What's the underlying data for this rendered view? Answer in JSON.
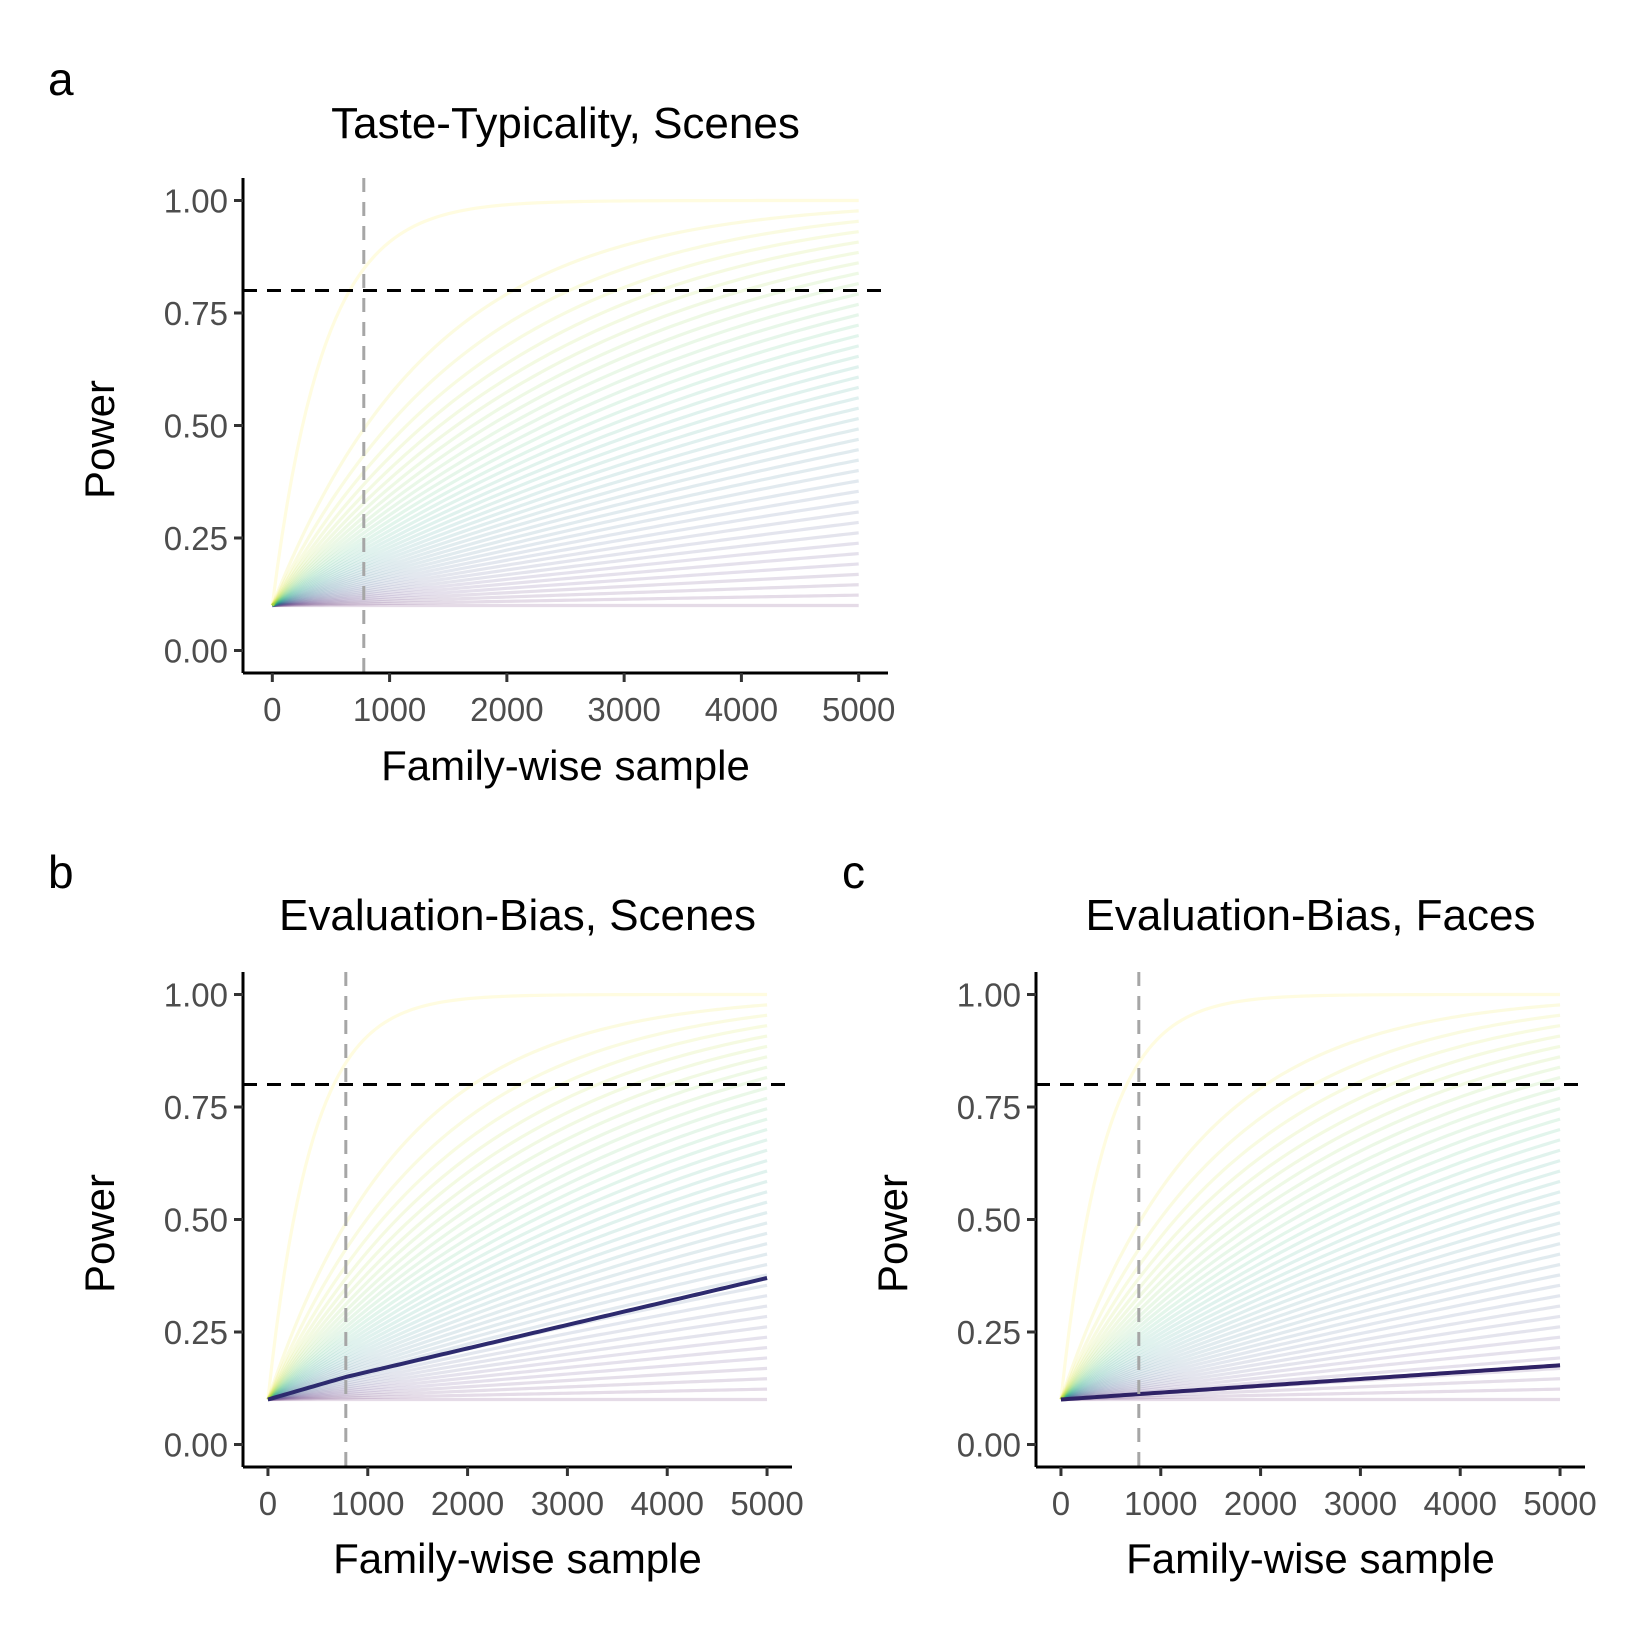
{
  "chart_data": [
    {
      "type": "line",
      "panel_letter": "a",
      "title": "Taste-Typicality, Scenes",
      "xlabel": "Family-wise sample",
      "ylabel": "Power",
      "xlim": [
        -250,
        5250
      ],
      "ylim": [
        -0.05,
        1.05
      ],
      "x_ticks": [
        0,
        1000,
        2000,
        3000,
        4000,
        5000
      ],
      "y_ticks": [
        0.0,
        0.25,
        0.5,
        0.75,
        1.0
      ],
      "y_tick_labels": [
        "0.00",
        "0.25",
        "0.50",
        "0.75",
        "1.00"
      ],
      "reference_lines": {
        "power_threshold": 0.8,
        "sample_size": 780
      },
      "power_curves": {
        "x": [
          0,
          5000
        ],
        "start_power": 0.1,
        "count": 40,
        "end_power_min": 0.1,
        "end_power_max": 1.0,
        "color_scale": "viridis"
      },
      "highlighted_curve": null,
      "grid": false
    },
    {
      "type": "line",
      "panel_letter": "b",
      "title": "Evaluation-Bias, Scenes",
      "xlabel": "Family-wise sample",
      "ylabel": "Power",
      "xlim": [
        -250,
        5250
      ],
      "ylim": [
        -0.05,
        1.05
      ],
      "x_ticks": [
        0,
        1000,
        2000,
        3000,
        4000,
        5000
      ],
      "y_ticks": [
        0.0,
        0.25,
        0.5,
        0.75,
        1.0
      ],
      "y_tick_labels": [
        "0.00",
        "0.25",
        "0.50",
        "0.75",
        "1.00"
      ],
      "reference_lines": {
        "power_threshold": 0.8,
        "sample_size": 780
      },
      "power_curves": {
        "x": [
          0,
          5000
        ],
        "start_power": 0.1,
        "count": 40,
        "end_power_min": 0.1,
        "end_power_max": 1.0,
        "color_scale": "viridis"
      },
      "highlighted_curve": {
        "x": [
          0,
          780,
          5000
        ],
        "y": [
          0.1,
          0.15,
          0.37
        ],
        "color": "#2d2a6e"
      },
      "grid": false
    },
    {
      "type": "line",
      "panel_letter": "c",
      "title": "Evaluation-Bias, Faces",
      "xlabel": "Family-wise sample",
      "ylabel": "Power",
      "xlim": [
        -250,
        5250
      ],
      "ylim": [
        -0.05,
        1.05
      ],
      "x_ticks": [
        0,
        1000,
        2000,
        3000,
        4000,
        5000
      ],
      "y_ticks": [
        0.0,
        0.25,
        0.5,
        0.75,
        1.0
      ],
      "y_tick_labels": [
        "0.00",
        "0.25",
        "0.50",
        "0.75",
        "1.00"
      ],
      "reference_lines": {
        "power_threshold": 0.8,
        "sample_size": 780
      },
      "power_curves": {
        "x": [
          0,
          5000
        ],
        "start_power": 0.1,
        "count": 40,
        "end_power_min": 0.1,
        "end_power_max": 1.0,
        "color_scale": "viridis"
      },
      "highlighted_curve": {
        "x": [
          0,
          780,
          5000
        ],
        "y": [
          0.1,
          0.112,
          0.176
        ],
        "color": "#2f2266"
      },
      "grid": false
    }
  ]
}
